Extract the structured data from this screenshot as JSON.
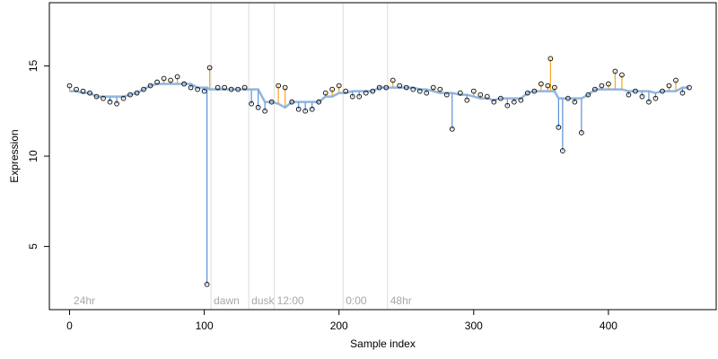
{
  "chart_data": {
    "type": "scatter",
    "title": "",
    "xlabel": "Sample index",
    "ylabel": "Expression",
    "xlim": [
      -15,
      480
    ],
    "ylim": [
      1.5,
      18.5
    ],
    "x_ticks": [
      0,
      100,
      200,
      300,
      400
    ],
    "y_ticks": [
      5,
      10,
      15
    ],
    "colors": {
      "points": "#000000",
      "above_trend": "#f5a623",
      "below_trend": "#5b8fd6",
      "trend": "#7fa8d8",
      "guides": "#dcdcdc",
      "annotation": "#a8a8a8"
    },
    "guide_lines": [
      {
        "x": 105,
        "label": "dawn"
      },
      {
        "x": 133,
        "label": "dusk"
      },
      {
        "x": 152,
        "label": "12:00"
      },
      {
        "x": 203,
        "label": "0:00"
      },
      {
        "x": 236,
        "label": "48hr"
      }
    ],
    "corner_label": {
      "x": 3,
      "label": "24hr"
    },
    "series": [
      {
        "x": [
          0,
          5,
          10,
          15,
          20,
          25,
          30,
          35,
          40,
          45,
          50,
          55,
          60,
          65,
          70,
          75,
          80,
          85,
          90,
          95,
          100,
          102,
          104,
          110,
          115,
          120,
          125,
          130,
          135,
          140,
          145,
          150,
          155,
          160,
          165,
          170,
          175,
          180,
          185,
          190,
          195,
          200,
          205,
          210,
          215,
          220,
          225,
          230,
          235,
          240,
          245,
          250,
          255,
          260,
          265,
          270,
          275,
          280,
          284,
          290,
          295,
          300,
          305,
          310,
          315,
          320,
          325,
          330,
          335,
          340,
          345,
          350,
          355,
          357,
          360,
          363,
          366,
          370,
          375,
          380,
          385,
          390,
          395,
          400,
          405,
          410,
          415,
          420,
          425,
          430,
          435,
          440,
          445,
          450,
          455,
          460
        ],
        "y": [
          13.9,
          13.7,
          13.6,
          13.5,
          13.3,
          13.2,
          13.0,
          12.9,
          13.2,
          13.4,
          13.5,
          13.7,
          13.9,
          14.1,
          14.3,
          14.2,
          14.4,
          14.0,
          13.8,
          13.7,
          13.6,
          2.9,
          14.9,
          13.8,
          13.8,
          13.7,
          13.7,
          13.8,
          12.9,
          12.7,
          12.5,
          13.0,
          13.9,
          13.8,
          13.0,
          12.6,
          12.5,
          12.6,
          13.0,
          13.5,
          13.7,
          13.9,
          13.6,
          13.3,
          13.3,
          13.5,
          13.6,
          13.8,
          13.8,
          14.2,
          13.9,
          13.8,
          13.7,
          13.6,
          13.5,
          13.8,
          13.7,
          13.4,
          11.5,
          13.5,
          13.1,
          13.6,
          13.4,
          13.3,
          13.0,
          13.2,
          12.8,
          13.0,
          13.1,
          13.5,
          13.6,
          14.0,
          13.9,
          15.4,
          13.8,
          11.6,
          10.3,
          13.2,
          13.0,
          11.3,
          13.4,
          13.7,
          13.9,
          14.0,
          14.7,
          14.5,
          13.4,
          13.6,
          13.3,
          13.0,
          13.2,
          13.6,
          13.9,
          14.2,
          13.5,
          13.8
        ]
      }
    ]
  }
}
